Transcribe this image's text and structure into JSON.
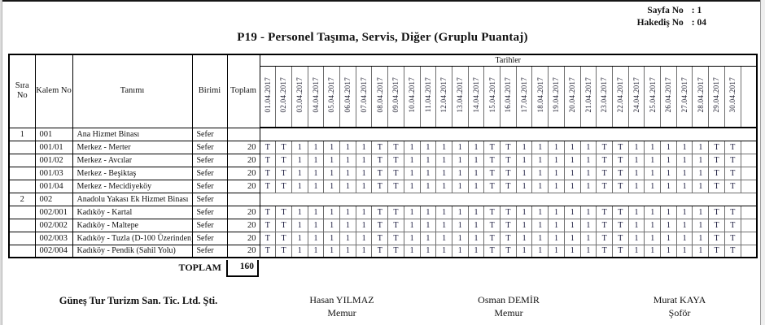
{
  "meta": {
    "sayfa_label": "Sayfa No",
    "sayfa_value": ": 1",
    "hakedis_label": "Hakediş No",
    "hakedis_value": ": 04"
  },
  "title": "P19 - Personel Taşıma, Servis, Diğer (Gruplu Puantaj)",
  "table": {
    "headers": {
      "sira": "Sıra No",
      "kalem": "Kalem No",
      "tanim": "Tanımı",
      "birim": "Birimi",
      "toplam": "Toplam",
      "tarihler": "Tarihler"
    },
    "dates": [
      "01.04.2017",
      "02.04.2017",
      "03.04.2017",
      "04.04.2017",
      "05.04.2017",
      "06.04.2017",
      "07.04.2017",
      "08.04.2017",
      "09.04.2017",
      "10.04.2017",
      "11.04.2017",
      "12.04.2017",
      "13.04.2017",
      "14.04.2017",
      "15.04.2017",
      "16.04.2017",
      "17.04.2017",
      "18.04.2017",
      "19.04.2017",
      "20.04.2017",
      "21.04.2017",
      "23.04.2017",
      "22.04.2017",
      "24.04.2017",
      "25.04.2017",
      "26.04.2017",
      "27.04.2017",
      "28.04.2017",
      "29.04.2017",
      "30.04.2017",
      ""
    ],
    "rows": [
      {
        "sira": "1",
        "kalem": "001",
        "tanim": "Ana Hizmet Binası",
        "birim": "Sefer",
        "toplam": "",
        "group": true,
        "values": []
      },
      {
        "sira": "",
        "kalem": "001/01",
        "tanim": "Merkez - Merter",
        "birim": "Sefer",
        "toplam": "20",
        "group": false,
        "values": [
          "T",
          "T",
          "1",
          "1",
          "1",
          "1",
          "1",
          "T",
          "T",
          "1",
          "1",
          "1",
          "1",
          "1",
          "T",
          "T",
          "1",
          "1",
          "1",
          "1",
          "1",
          "T",
          "T",
          "1",
          "1",
          "1",
          "1",
          "1",
          "T",
          "T",
          ""
        ]
      },
      {
        "sira": "",
        "kalem": "001/02",
        "tanim": "Merkez - Avcılar",
        "birim": "Sefer",
        "toplam": "20",
        "group": false,
        "values": [
          "T",
          "T",
          "1",
          "1",
          "1",
          "1",
          "1",
          "T",
          "T",
          "1",
          "1",
          "1",
          "1",
          "1",
          "T",
          "T",
          "1",
          "1",
          "1",
          "1",
          "1",
          "T",
          "T",
          "1",
          "1",
          "1",
          "1",
          "1",
          "T",
          "T",
          ""
        ]
      },
      {
        "sira": "",
        "kalem": "001/03",
        "tanim": "Merkez - Beşiktaş",
        "birim": "Sefer",
        "toplam": "20",
        "group": false,
        "values": [
          "T",
          "T",
          "1",
          "1",
          "1",
          "1",
          "1",
          "T",
          "T",
          "1",
          "1",
          "1",
          "1",
          "1",
          "T",
          "T",
          "1",
          "1",
          "1",
          "1",
          "1",
          "T",
          "T",
          "1",
          "1",
          "1",
          "1",
          "1",
          "T",
          "T",
          ""
        ]
      },
      {
        "sira": "",
        "kalem": "001/04",
        "tanim": "Merkez - Mecidiyeköy",
        "birim": "Sefer",
        "toplam": "20",
        "group": false,
        "values": [
          "T",
          "T",
          "1",
          "1",
          "1",
          "1",
          "1",
          "T",
          "T",
          "1",
          "1",
          "1",
          "1",
          "1",
          "T",
          "T",
          "1",
          "1",
          "1",
          "1",
          "1",
          "T",
          "T",
          "1",
          "1",
          "1",
          "1",
          "1",
          "T",
          "T",
          ""
        ]
      },
      {
        "sira": "2",
        "kalem": "002",
        "tanim": "Anadolu Yakası Ek Hizmet Binası",
        "birim": "Sefer",
        "toplam": "",
        "group": true,
        "values": []
      },
      {
        "sira": "",
        "kalem": "002/001",
        "tanim": "Kadıköy - Kartal",
        "birim": "Sefer",
        "toplam": "20",
        "group": false,
        "values": [
          "T",
          "T",
          "1",
          "1",
          "1",
          "1",
          "1",
          "T",
          "T",
          "1",
          "1",
          "1",
          "1",
          "1",
          "T",
          "T",
          "1",
          "1",
          "1",
          "1",
          "1",
          "T",
          "T",
          "1",
          "1",
          "1",
          "1",
          "1",
          "T",
          "T",
          ""
        ]
      },
      {
        "sira": "",
        "kalem": "002/002",
        "tanim": "Kadıköy - Maltepe",
        "birim": "Sefer",
        "toplam": "20",
        "group": false,
        "values": [
          "T",
          "T",
          "1",
          "1",
          "1",
          "1",
          "1",
          "T",
          "T",
          "1",
          "1",
          "1",
          "1",
          "1",
          "T",
          "T",
          "1",
          "1",
          "1",
          "1",
          "1",
          "T",
          "T",
          "1",
          "1",
          "1",
          "1",
          "1",
          "T",
          "T",
          ""
        ]
      },
      {
        "sira": "",
        "kalem": "002/003",
        "tanim": "Kadıköy - Tuzla (D-100 Üzerinden)",
        "birim": "Sefer",
        "toplam": "20",
        "group": false,
        "values": [
          "T",
          "T",
          "1",
          "1",
          "1",
          "1",
          "1",
          "T",
          "T",
          "1",
          "1",
          "1",
          "1",
          "1",
          "T",
          "T",
          "1",
          "1",
          "1",
          "1",
          "1",
          "T",
          "T",
          "1",
          "1",
          "1",
          "1",
          "1",
          "T",
          "T",
          ""
        ]
      },
      {
        "sira": "",
        "kalem": "002/004",
        "tanim": "Kadıköy - Pendik (Sahil Yolu)",
        "birim": "Sefer",
        "toplam": "20",
        "group": false,
        "values": [
          "T",
          "T",
          "1",
          "1",
          "1",
          "1",
          "1",
          "T",
          "T",
          "1",
          "1",
          "1",
          "1",
          "1",
          "T",
          "T",
          "1",
          "1",
          "1",
          "1",
          "1",
          "T",
          "T",
          "1",
          "1",
          "1",
          "1",
          "1",
          "T",
          "T",
          ""
        ]
      }
    ],
    "toplam_label": "TOPLAM",
    "toplam_value": "160"
  },
  "signatures": [
    {
      "name": "Güneş Tur Turizm San. Tic. Ltd. Şti.",
      "role": ""
    },
    {
      "name": "Hasan YILMAZ",
      "role": "Memur"
    },
    {
      "name": "Osman DEMİR",
      "role": "Memur"
    },
    {
      "name": "Murat KAYA",
      "role": "Şoför"
    }
  ]
}
